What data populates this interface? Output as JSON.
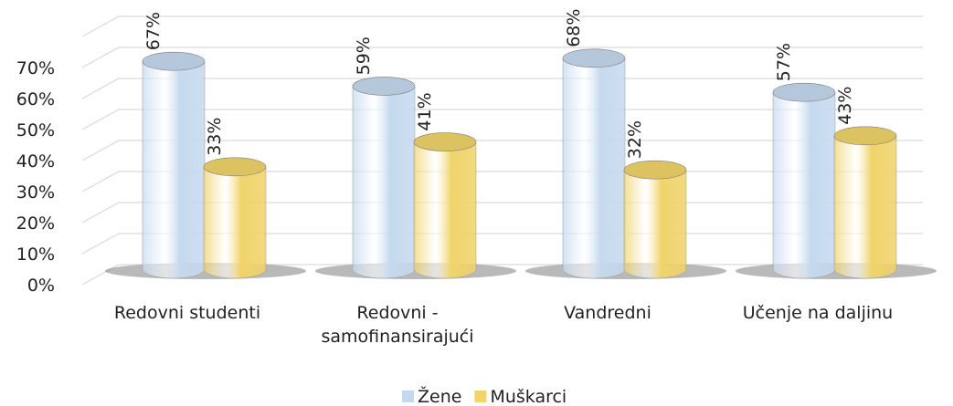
{
  "chart_data": {
    "type": "bar3d",
    "categories": [
      "Redovni studenti",
      "Redovni - samofinansirajući",
      "Vandredni",
      "Učenje na daljinu"
    ],
    "series": [
      {
        "name": "Žene",
        "color": "#c5d9ee",
        "values": [
          67,
          59,
          68,
          57
        ],
        "value_labels": [
          "67%",
          "59%",
          "68%",
          "57%"
        ]
      },
      {
        "name": "Muškarci",
        "color": "#f0d36a",
        "values": [
          33,
          41,
          32,
          43
        ],
        "value_labels": [
          "33%",
          "41%",
          "32%",
          "43%"
        ]
      }
    ],
    "ylim": [
      0,
      80
    ],
    "yticks": [
      {
        "value": 0,
        "label": "0%"
      },
      {
        "value": 10,
        "label": "10%"
      },
      {
        "value": 20,
        "label": "20%"
      },
      {
        "value": 30,
        "label": "30%"
      },
      {
        "value": 40,
        "label": "40%"
      },
      {
        "value": 50,
        "label": "50%"
      },
      {
        "value": 60,
        "label": "60%"
      },
      {
        "value": 70,
        "label": "70%"
      }
    ],
    "grid": true,
    "legend": "bottom"
  }
}
